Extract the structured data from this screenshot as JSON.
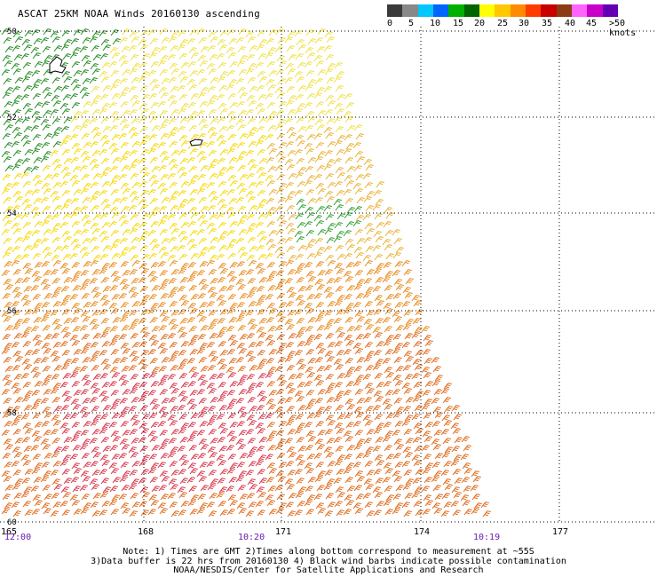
{
  "title": "ASCAT 25KM NOAA Winds 20160130 ascending",
  "scale": {
    "colors": [
      "#3a3a3a",
      "#888888",
      "#00c8ff",
      "#0064ff",
      "#00b000",
      "#006400",
      "#ffff00",
      "#ffc800",
      "#ff8c00",
      "#ff3c00",
      "#c80000",
      "#8c3c14",
      "#ff64ff",
      "#c800c8",
      "#6400b4"
    ],
    "labels": [
      "0",
      "5",
      "10",
      "15",
      "20",
      "25",
      "30",
      "35",
      "40",
      "45",
      ">50 knots"
    ]
  },
  "axes": {
    "lat_labels": [
      "50",
      "52",
      "54",
      "56",
      "58",
      "60"
    ],
    "lon_labels": [
      "165",
      "168",
      "171",
      "174",
      "177"
    ],
    "times": [
      "12:00",
      "10:20",
      "10:19"
    ]
  },
  "notes": [
    "Note: 1) Times are GMT 2)Times along bottom correspond to measurement at ~55S",
    "3)Data buffer is 22 hrs from 20160130 4) Black wind barbs indicate possible contamination",
    "NOAA/NESDIS/Center for Satellite Applications and Research"
  ]
}
